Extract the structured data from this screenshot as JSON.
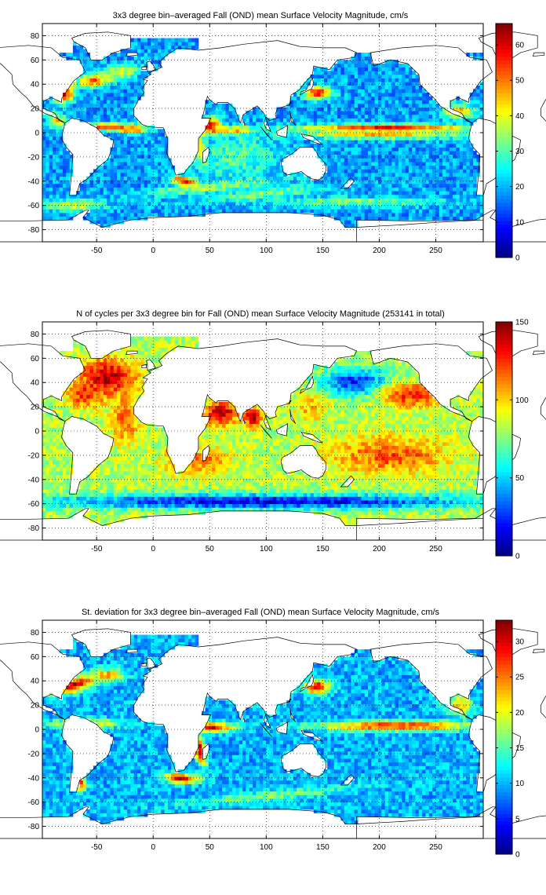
{
  "chart_data": [
    {
      "type": "heatmap",
      "title": "3x3 degree bin–averaged Fall (OND) mean Surface Velocity Magnitude, cm/s",
      "xlabel": "",
      "ylabel": "",
      "xlim": [
        -98,
        292
      ],
      "ylim": [
        -90,
        90
      ],
      "x_ticks": [
        -50,
        0,
        50,
        100,
        150,
        200,
        250
      ],
      "y_ticks": [
        80,
        60,
        40,
        20,
        0,
        -20,
        -40,
        -60,
        -80
      ],
      "colorbar": {
        "min": 0,
        "max": 66,
        "ticks": [
          0,
          10,
          20,
          30,
          40,
          50,
          60
        ]
      },
      "grid": true,
      "colormap": "jet",
      "bin_size_deg": 3,
      "background_level": 0.28,
      "features": [
        {
          "lon": -78,
          "lat": 33,
          "level": 0.92,
          "rx": 9,
          "ry": 7,
          "angle": 35
        },
        {
          "lon": -52,
          "lat": 43,
          "level": 0.85,
          "rx": 14,
          "ry": 5,
          "angle": 5
        },
        {
          "lon": -30,
          "lat": 50,
          "level": 0.6,
          "rx": 18,
          "ry": 6,
          "angle": 10
        },
        {
          "lon": -40,
          "lat": 5,
          "level": 0.85,
          "rx": 30,
          "ry": 3,
          "angle": 0
        },
        {
          "lon": -18,
          "lat": 2,
          "level": 0.75,
          "rx": 12,
          "ry": 3,
          "angle": 0
        },
        {
          "lon": 50,
          "lat": 5,
          "level": 0.95,
          "rx": 10,
          "ry": 6,
          "angle": 35
        },
        {
          "lon": 65,
          "lat": 2,
          "level": 0.85,
          "rx": 25,
          "ry": 3,
          "angle": 0
        },
        {
          "lon": 40,
          "lat": -12,
          "level": 0.9,
          "rx": 5,
          "ry": 14,
          "angle": 20
        },
        {
          "lon": 28,
          "lat": -40,
          "level": 0.95,
          "rx": 12,
          "ry": 4,
          "angle": -10
        },
        {
          "lon": 50,
          "lat": -45,
          "level": 0.55,
          "rx": 60,
          "ry": 4,
          "angle": 5
        },
        {
          "lon": 100,
          "lat": -50,
          "level": 0.5,
          "rx": 60,
          "ry": 4,
          "angle": 5
        },
        {
          "lon": 145,
          "lat": 33,
          "level": 0.9,
          "rx": 12,
          "ry": 5,
          "angle": 0
        },
        {
          "lon": 205,
          "lat": 4,
          "level": 0.9,
          "rx": 75,
          "ry": 3,
          "angle": 0
        },
        {
          "lon": 200,
          "lat": -2,
          "level": 0.7,
          "rx": 70,
          "ry": 3,
          "angle": 0
        },
        {
          "lon": 270,
          "lat": 18,
          "level": 0.7,
          "rx": 14,
          "ry": 6,
          "angle": 0
        },
        {
          "lon": -85,
          "lat": 10,
          "level": 0.7,
          "rx": 8,
          "ry": 6,
          "angle": 0
        },
        {
          "lon": -70,
          "lat": -60,
          "level": 0.6,
          "rx": 25,
          "ry": 5,
          "angle": 0
        },
        {
          "lon": 180,
          "lat": -57,
          "level": 0.5,
          "rx": 80,
          "ry": 4,
          "angle": 0
        },
        {
          "lon": 75,
          "lat": -20,
          "level": 0.45,
          "rx": 40,
          "ry": 20,
          "angle": 0
        }
      ]
    },
    {
      "type": "heatmap",
      "title": "N of cycles per 3x3 degree bin for Fall (OND) mean Surface Velocity Magnitude (253141 in total)",
      "xlabel": "",
      "ylabel": "",
      "xlim": [
        -98,
        292
      ],
      "ylim": [
        -90,
        90
      ],
      "x_ticks": [
        -50,
        0,
        50,
        100,
        150,
        200,
        250
      ],
      "y_ticks": [
        80,
        60,
        40,
        20,
        0,
        -20,
        -40,
        -60,
        -80
      ],
      "colorbar": {
        "min": 0,
        "max": 150,
        "ticks": [
          0,
          50,
          100,
          150
        ]
      },
      "grid": true,
      "colormap": "jet",
      "bin_size_deg": 3,
      "background_level": 0.55,
      "features": [
        {
          "lon": -40,
          "lat": 45,
          "level": 0.95,
          "rx": 25,
          "ry": 15,
          "angle": 0
        },
        {
          "lon": -60,
          "lat": 30,
          "level": 0.85,
          "rx": 15,
          "ry": 10,
          "angle": 0
        },
        {
          "lon": -25,
          "lat": 10,
          "level": 0.8,
          "rx": 12,
          "ry": 18,
          "angle": 0
        },
        {
          "lon": 60,
          "lat": 15,
          "level": 0.95,
          "rx": 15,
          "ry": 10,
          "angle": 0
        },
        {
          "lon": 88,
          "lat": 12,
          "level": 0.95,
          "rx": 8,
          "ry": 8,
          "angle": 0
        },
        {
          "lon": 180,
          "lat": 40,
          "level": 0.15,
          "rx": 30,
          "ry": 12,
          "angle": 0
        },
        {
          "lon": 230,
          "lat": 30,
          "level": 0.85,
          "rx": 30,
          "ry": 10,
          "angle": 0
        },
        {
          "lon": 210,
          "lat": -20,
          "level": 0.8,
          "rx": 50,
          "ry": 15,
          "angle": 0
        },
        {
          "lon": 40,
          "lat": -25,
          "level": 0.75,
          "rx": 30,
          "ry": 12,
          "angle": 0
        },
        {
          "lon": 100,
          "lat": -58,
          "level": 0.1,
          "rx": 200,
          "ry": 6,
          "angle": 0
        },
        {
          "lon": 140,
          "lat": 20,
          "level": 0.7,
          "rx": 15,
          "ry": 10,
          "angle": 0
        }
      ]
    },
    {
      "type": "heatmap",
      "title": "St. deviation for 3x3 degree bin–averaged Fall (OND) mean Surface Velocity Magnitude, cm/s",
      "xlabel": "",
      "ylabel": "",
      "xlim": [
        -98,
        292
      ],
      "ylim": [
        -90,
        90
      ],
      "x_ticks": [
        -50,
        0,
        50,
        100,
        150,
        200,
        250
      ],
      "y_ticks": [
        80,
        60,
        40,
        20,
        0,
        -20,
        -40,
        -60,
        -80
      ],
      "colorbar": {
        "min": 0,
        "max": 33,
        "ticks": [
          0,
          5,
          10,
          15,
          20,
          25,
          30
        ]
      },
      "grid": true,
      "colormap": "jet",
      "bin_size_deg": 3,
      "background_level": 0.3,
      "features": [
        {
          "lon": -70,
          "lat": 37,
          "level": 0.95,
          "rx": 18,
          "ry": 6,
          "angle": 15
        },
        {
          "lon": -40,
          "lat": 45,
          "level": 0.7,
          "rx": 15,
          "ry": 5,
          "angle": 0
        },
        {
          "lon": -60,
          "lat": 5,
          "level": 0.65,
          "rx": 30,
          "ry": 4,
          "angle": 0
        },
        {
          "lon": 50,
          "lat": 2,
          "level": 0.95,
          "rx": 20,
          "ry": 4,
          "angle": 0
        },
        {
          "lon": 40,
          "lat": -15,
          "level": 0.95,
          "rx": 5,
          "ry": 15,
          "angle": 20
        },
        {
          "lon": 25,
          "lat": -40,
          "level": 0.95,
          "rx": 15,
          "ry": 4,
          "angle": -5
        },
        {
          "lon": 145,
          "lat": 35,
          "level": 0.9,
          "rx": 12,
          "ry": 6,
          "angle": 0
        },
        {
          "lon": 215,
          "lat": 3,
          "level": 0.85,
          "rx": 70,
          "ry": 4,
          "angle": 0
        },
        {
          "lon": 270,
          "lat": 20,
          "level": 0.7,
          "rx": 12,
          "ry": 8,
          "angle": 0
        },
        {
          "lon": 100,
          "lat": -55,
          "level": 0.5,
          "rx": 80,
          "ry": 4,
          "angle": 5
        },
        {
          "lon": -65,
          "lat": -45,
          "level": 0.85,
          "rx": 6,
          "ry": 6,
          "angle": 0
        }
      ]
    }
  ]
}
